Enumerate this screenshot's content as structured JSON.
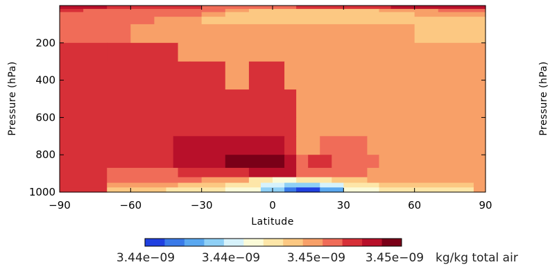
{
  "chart_data": {
    "type": "heatmap",
    "xlabel": "Latitude",
    "ylabel": "Pressure (hPa)",
    "ylabel_right": "Pressure (hPa)",
    "xlim": [
      -90,
      90
    ],
    "ylim": [
      1000,
      0
    ],
    "x_ticks": [
      -90,
      -60,
      -30,
      0,
      30,
      60,
      90
    ],
    "x_tick_labels": [
      "−90",
      "−60",
      "−30",
      "0",
      "30",
      "60",
      "90"
    ],
    "y_ticks": [
      200,
      400,
      600,
      800,
      1000
    ],
    "y_tick_labels": [
      "200",
      "400",
      "600",
      "800",
      "1000"
    ],
    "colorbar": {
      "colors": [
        "#2040e0",
        "#3a7ae8",
        "#5aa8f0",
        "#8fd0f6",
        "#d6f2fb",
        "#fbfbd8",
        "#fde6a8",
        "#fcc882",
        "#f8a068",
        "#f06c58",
        "#d73038",
        "#b8102a",
        "#7a0018"
      ],
      "tick_labels": [
        "3.44e−09",
        "3.44e−09",
        "3.45e−09",
        "3.45e−09"
      ],
      "units": "kg/kg total air"
    },
    "field_note": "values encoded as colorbar level index 0-12",
    "levels": [
      {
        "p_top": 0,
        "p_bot": 18,
        "bands": [
          [
            -90,
            -70,
            11
          ],
          [
            -70,
            -30,
            10
          ],
          [
            -30,
            10,
            9
          ],
          [
            10,
            50,
            10
          ],
          [
            50,
            90,
            11
          ]
        ]
      },
      {
        "p_top": 18,
        "p_bot": 35,
        "bands": [
          [
            -90,
            -80,
            10
          ],
          [
            -80,
            -60,
            9
          ],
          [
            -60,
            -20,
            9
          ],
          [
            -20,
            -10,
            8
          ],
          [
            -10,
            45,
            7
          ],
          [
            45,
            70,
            8
          ],
          [
            70,
            90,
            9
          ]
        ]
      },
      {
        "p_top": 35,
        "p_bot": 60,
        "bands": [
          [
            -90,
            -60,
            9
          ],
          [
            -60,
            -30,
            9
          ],
          [
            -30,
            -20,
            8
          ],
          [
            -20,
            60,
            7
          ],
          [
            60,
            90,
            8
          ]
        ]
      },
      {
        "p_top": 60,
        "p_bot": 100,
        "bands": [
          [
            -90,
            -50,
            9
          ],
          [
            -50,
            -30,
            8
          ],
          [
            -30,
            70,
            7
          ],
          [
            70,
            90,
            7
          ]
        ]
      },
      {
        "p_top": 100,
        "p_bot": 200,
        "bands": [
          [
            -90,
            -60,
            9
          ],
          [
            -60,
            -40,
            8
          ],
          [
            -40,
            0,
            8
          ],
          [
            0,
            60,
            8
          ],
          [
            60,
            80,
            7
          ],
          [
            80,
            90,
            7
          ]
        ]
      },
      {
        "p_top": 200,
        "p_bot": 300,
        "bands": [
          [
            -90,
            -70,
            10
          ],
          [
            -70,
            -40,
            10
          ],
          [
            -40,
            90,
            8
          ]
        ]
      },
      {
        "p_top": 300,
        "p_bot": 450,
        "bands": [
          [
            -90,
            -35,
            10
          ],
          [
            -35,
            -20,
            10
          ],
          [
            -20,
            -10,
            8
          ],
          [
            -10,
            5,
            10
          ],
          [
            5,
            90,
            8
          ]
        ]
      },
      {
        "p_top": 450,
        "p_bot": 600,
        "bands": [
          [
            -90,
            5,
            10
          ],
          [
            5,
            10,
            10
          ],
          [
            10,
            90,
            8
          ]
        ]
      },
      {
        "p_top": 600,
        "p_bot": 700,
        "bands": [
          [
            -90,
            10,
            10
          ],
          [
            10,
            90,
            8
          ]
        ]
      },
      {
        "p_top": 700,
        "p_bot": 800,
        "bands": [
          [
            -90,
            -42,
            10
          ],
          [
            -42,
            -5,
            11
          ],
          [
            -5,
            5,
            11
          ],
          [
            5,
            10,
            10
          ],
          [
            10,
            20,
            8
          ],
          [
            20,
            40,
            9
          ],
          [
            40,
            90,
            8
          ]
        ]
      },
      {
        "p_top": 800,
        "p_bot": 870,
        "bands": [
          [
            -90,
            -42,
            10
          ],
          [
            -42,
            -20,
            11
          ],
          [
            -20,
            -5,
            12
          ],
          [
            -5,
            5,
            12
          ],
          [
            5,
            10,
            11
          ],
          [
            10,
            15,
            9
          ],
          [
            15,
            25,
            10
          ],
          [
            25,
            45,
            9
          ],
          [
            45,
            90,
            8
          ]
        ]
      },
      {
        "p_top": 870,
        "p_bot": 920,
        "bands": [
          [
            -90,
            -70,
            10
          ],
          [
            -70,
            -40,
            9
          ],
          [
            -40,
            -10,
            10
          ],
          [
            -10,
            10,
            11
          ],
          [
            10,
            40,
            9
          ],
          [
            40,
            90,
            8
          ]
        ]
      },
      {
        "p_top": 920,
        "p_bot": 950,
        "bands": [
          [
            -90,
            -70,
            10
          ],
          [
            -70,
            -30,
            9
          ],
          [
            -30,
            -10,
            8
          ],
          [
            -10,
            0,
            6
          ],
          [
            0,
            10,
            5
          ],
          [
            10,
            25,
            6
          ],
          [
            25,
            40,
            7
          ],
          [
            40,
            90,
            8
          ]
        ]
      },
      {
        "p_top": 950,
        "p_bot": 975,
        "bands": [
          [
            -90,
            -70,
            10
          ],
          [
            -70,
            -40,
            8
          ],
          [
            -40,
            -20,
            7
          ],
          [
            -20,
            -5,
            6
          ],
          [
            -5,
            5,
            4
          ],
          [
            5,
            10,
            3
          ],
          [
            10,
            20,
            3
          ],
          [
            20,
            30,
            4
          ],
          [
            30,
            45,
            6
          ],
          [
            45,
            85,
            7
          ],
          [
            85,
            90,
            8
          ]
        ]
      },
      {
        "p_top": 975,
        "p_bot": 1000,
        "bands": [
          [
            -90,
            -70,
            10
          ],
          [
            -70,
            -45,
            7
          ],
          [
            -45,
            -20,
            6
          ],
          [
            -20,
            -5,
            5
          ],
          [
            -5,
            5,
            3
          ],
          [
            5,
            10,
            1
          ],
          [
            10,
            20,
            0
          ],
          [
            20,
            30,
            2
          ],
          [
            30,
            45,
            5
          ],
          [
            45,
            85,
            6
          ],
          [
            85,
            90,
            8
          ]
        ]
      }
    ]
  }
}
